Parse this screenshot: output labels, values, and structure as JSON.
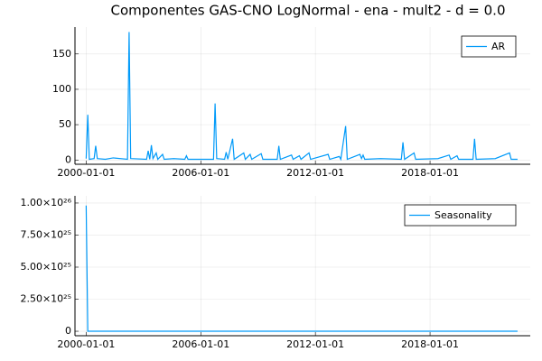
{
  "chart_data": [
    {
      "type": "line",
      "title": "Componentes GAS-CNO LogNormal - ena - mult2 - d = 0.0",
      "x": [
        "2000-01-01",
        "2000-02-01",
        "2000-03-01",
        "2000-06-01",
        "2000-07-01",
        "2000-08-01",
        "2001-01-01",
        "2001-06-01",
        "2002-03-01",
        "2002-04-01",
        "2002-05-01",
        "2003-03-01",
        "2003-04-01",
        "2003-05-01",
        "2003-06-01",
        "2003-07-01",
        "2003-09-01",
        "2003-10-01",
        "2004-01-01",
        "2004-02-01",
        "2004-08-01",
        "2005-03-01",
        "2005-04-01",
        "2005-05-01",
        "2006-09-01",
        "2006-10-01",
        "2006-11-01",
        "2007-04-01",
        "2007-05-01",
        "2007-06-01",
        "2007-09-01",
        "2007-10-01",
        "2008-04-01",
        "2008-05-01",
        "2008-08-01",
        "2008-09-01",
        "2009-03-01",
        "2009-04-01",
        "2010-01-01",
        "2010-02-01",
        "2010-03-01",
        "2010-10-01",
        "2010-11-01",
        "2011-03-01",
        "2011-04-01",
        "2011-09-01",
        "2011-10-01",
        "2012-09-01",
        "2012-10-01",
        "2013-04-01",
        "2013-05-01",
        "2013-08-01",
        "2013-09-01",
        "2014-05-01",
        "2014-06-01",
        "2014-07-01",
        "2014-08-01",
        "2015-06-01",
        "2016-07-01",
        "2016-08-01",
        "2016-09-01",
        "2017-03-01",
        "2017-04-01",
        "2018-06-01",
        "2019-01-01",
        "2019-02-01",
        "2019-06-01",
        "2019-07-01",
        "2020-04-01",
        "2020-05-01",
        "2020-06-01",
        "2021-06-01",
        "2022-03-01",
        "2022-04-01",
        "2022-08-01"
      ],
      "series": [
        {
          "name": "AR",
          "color": "#009af9",
          "values": [
            2,
            64,
            1,
            2,
            20,
            2,
            1,
            3,
            1,
            181,
            2,
            1,
            13,
            1,
            21,
            2,
            10,
            1,
            8,
            1,
            2,
            1,
            6,
            1,
            1,
            80,
            2,
            1,
            11,
            1,
            30,
            1,
            10,
            1,
            8,
            1,
            9,
            1,
            1,
            20,
            1,
            7,
            1,
            6,
            1,
            10,
            1,
            8,
            1,
            5,
            1,
            48,
            1,
            8,
            2,
            7,
            1,
            2,
            1,
            25,
            1,
            10,
            1,
            2,
            7,
            1,
            6,
            1,
            1,
            30,
            1,
            2,
            10,
            1,
            1
          ]
        }
      ],
      "xlim": [
        "1999-06-01",
        "2023-04-01"
      ],
      "xticks": [
        "2000-01-01",
        "2006-01-01",
        "2012-01-01",
        "2018-01-01"
      ],
      "ylim": [
        -6,
        188
      ],
      "yticks": [
        0,
        50,
        100,
        150
      ],
      "grid": true,
      "legend": "topright"
    },
    {
      "type": "line",
      "x": [
        "2000-01-01",
        "2000-02-01",
        "2022-08-01"
      ],
      "series": [
        {
          "name": "Seasonality",
          "color": "#009af9",
          "values": [
            9.8e+25,
            0,
            0
          ]
        }
      ],
      "xlim": [
        "1999-06-01",
        "2023-04-01"
      ],
      "xticks": [
        "2000-01-01",
        "2006-01-01",
        "2012-01-01",
        "2018-01-01"
      ],
      "ylim": [
        -3.5e+24,
        1.056e+26
      ],
      "yticks": [
        0,
        {
          "value": 2.5e+25,
          "label": "2.50×10²⁵"
        },
        {
          "value": 5e+25,
          "label": "5.00×10²⁵"
        },
        {
          "value": 7.5e+25,
          "label": "7.50×10²⁵"
        },
        {
          "value": 1e+26,
          "label": "1.00×10²⁶"
        }
      ],
      "grid": true,
      "legend": "topright"
    }
  ]
}
